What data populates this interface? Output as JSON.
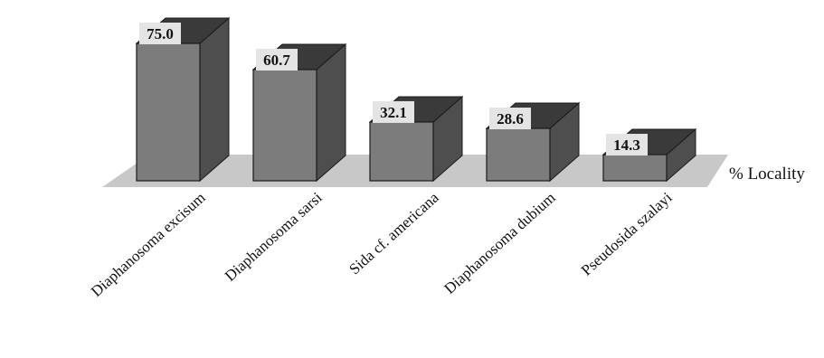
{
  "chart_data": {
    "type": "bar",
    "categories": [
      "Diaphanosoma excisum",
      "Diaphanosoma sarsi",
      "Sida cf. americana",
      "Diaphanosoma dubium",
      "Pseudosida szalayi"
    ],
    "series": [
      {
        "name": "% Locality",
        "values": [
          75.0,
          60.7,
          32.1,
          28.6,
          14.3
        ]
      }
    ],
    "value_labels": [
      "75.0",
      "60.7",
      "32.1",
      "28.6",
      "14.3"
    ],
    "title": "",
    "xlabel": "",
    "ylabel": "",
    "ylim": [
      0,
      75
    ],
    "grid": false,
    "style": "3d-columns",
    "colors": {
      "bar_front": "#7c7c7c",
      "bar_top": "#3a3a3a",
      "bar_side": "#4e4e4e",
      "floor": "#c8c8c8",
      "label_box": "#e4e4e4",
      "edge": "#1a1a1a"
    }
  }
}
